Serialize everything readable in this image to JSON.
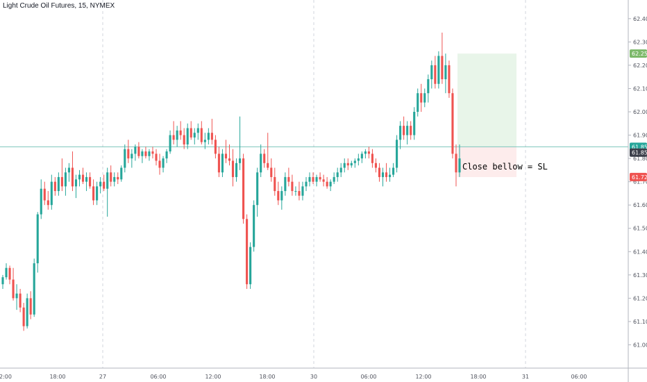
{
  "header": {
    "title": "Light Crude Oil Futures, 15, NYMEX"
  },
  "colors": {
    "up": "#26a69a",
    "down": "#ef5350",
    "grid": "#d1d4dc",
    "hline": "#7cc4bb",
    "target_zone": "#e8f5e9",
    "stop_zone": "#fdecec",
    "badge_green": "#7cb96a",
    "badge_red": "#ef5350",
    "badge_dark": "#3b3f4a"
  },
  "chart_data": {
    "type": "candlestick",
    "title": "Light Crude Oil Futures, 15, NYMEX",
    "ylim": [
      60.9,
      62.48
    ],
    "y_ticks": [
      "62.40",
      "62.30",
      "62.20",
      "62.10",
      "62.00",
      "61.90",
      "61.80",
      "61.70",
      "61.60",
      "61.50",
      "61.40",
      "61.30",
      "61.20",
      "61.10",
      "61.00"
    ],
    "x_ticks": [
      "2:00",
      "18:00",
      "27",
      "06:00",
      "12:00",
      "18:00",
      "30",
      "06:00",
      "12:00",
      "18:00",
      "31",
      "06:00"
    ],
    "price_badges": [
      {
        "label": "62.25",
        "value": 62.25,
        "color": "green"
      },
      {
        "label": "61.85",
        "value": 61.85,
        "color": "teal"
      },
      {
        "label": "61.85",
        "value": 61.825,
        "color": "dark"
      },
      {
        "label": "61.72",
        "value": 61.72,
        "color": "red"
      }
    ],
    "horizontal_line": 61.85,
    "position": {
      "target": 62.25,
      "entry": 61.85,
      "stop": 61.72
    },
    "annotation": "Close bellow = SL",
    "candles": [
      [
        61.26,
        61.3,
        61.24,
        61.29
      ],
      [
        61.29,
        61.35,
        61.28,
        61.33
      ],
      [
        61.33,
        61.34,
        61.26,
        61.28
      ],
      [
        61.28,
        61.33,
        61.19,
        61.2
      ],
      [
        61.2,
        61.26,
        61.15,
        61.22
      ],
      [
        61.22,
        61.24,
        61.14,
        61.16
      ],
      [
        61.16,
        61.18,
        61.06,
        61.08
      ],
      [
        61.08,
        61.22,
        61.07,
        61.2
      ],
      [
        61.2,
        61.23,
        61.11,
        61.13
      ],
      [
        61.13,
        61.37,
        61.12,
        61.35
      ],
      [
        61.35,
        61.57,
        61.31,
        61.56
      ],
      [
        61.56,
        61.71,
        61.54,
        61.67
      ],
      [
        61.67,
        61.7,
        61.6,
        61.62
      ],
      [
        61.62,
        61.66,
        61.58,
        61.6
      ],
      [
        61.6,
        61.73,
        61.58,
        61.7
      ],
      [
        61.7,
        61.72,
        61.64,
        61.66
      ],
      [
        61.66,
        61.74,
        61.64,
        61.72
      ],
      [
        61.72,
        61.8,
        61.66,
        61.68
      ],
      [
        61.68,
        61.76,
        61.64,
        61.74
      ],
      [
        61.74,
        61.78,
        61.7,
        61.76
      ],
      [
        61.76,
        61.83,
        61.66,
        61.68
      ],
      [
        61.68,
        61.73,
        61.63,
        61.71
      ],
      [
        61.71,
        61.75,
        61.68,
        61.73
      ],
      [
        61.73,
        61.76,
        61.69,
        61.7
      ],
      [
        61.7,
        61.74,
        61.66,
        61.72
      ],
      [
        61.72,
        61.74,
        61.67,
        61.68
      ],
      [
        61.68,
        61.71,
        61.6,
        61.62
      ],
      [
        61.62,
        61.7,
        61.6,
        61.68
      ],
      [
        61.68,
        61.72,
        61.65,
        61.7
      ],
      [
        61.7,
        61.73,
        61.66,
        61.67
      ],
      [
        61.67,
        61.76,
        61.55,
        61.74
      ],
      [
        61.74,
        61.77,
        61.68,
        61.7
      ],
      [
        61.7,
        61.74,
        61.68,
        61.72
      ],
      [
        61.72,
        61.74,
        61.69,
        61.71
      ],
      [
        61.71,
        61.77,
        61.7,
        61.76
      ],
      [
        61.76,
        61.86,
        61.74,
        61.84
      ],
      [
        61.84,
        61.88,
        61.78,
        61.8
      ],
      [
        61.8,
        61.84,
        61.76,
        61.82
      ],
      [
        61.82,
        61.86,
        61.79,
        61.85
      ],
      [
        61.85,
        61.87,
        61.8,
        61.81
      ],
      [
        61.81,
        61.84,
        61.78,
        61.83
      ],
      [
        61.83,
        61.85,
        61.8,
        61.81
      ],
      [
        61.81,
        61.84,
        61.79,
        61.83
      ],
      [
        61.83,
        61.85,
        61.8,
        61.82
      ],
      [
        61.82,
        61.84,
        61.77,
        61.79
      ],
      [
        61.79,
        61.82,
        61.73,
        61.76
      ],
      [
        61.76,
        61.81,
        61.74,
        61.8
      ],
      [
        61.8,
        61.84,
        61.78,
        61.83
      ],
      [
        61.83,
        61.92,
        61.82,
        61.9
      ],
      [
        61.9,
        61.96,
        61.86,
        61.88
      ],
      [
        61.88,
        61.94,
        61.85,
        61.92
      ],
      [
        61.92,
        61.96,
        61.88,
        61.9
      ],
      [
        61.9,
        61.93,
        61.84,
        61.86
      ],
      [
        61.86,
        61.95,
        61.84,
        61.93
      ],
      [
        61.93,
        61.96,
        61.88,
        61.89
      ],
      [
        61.89,
        61.93,
        61.86,
        61.91
      ],
      [
        61.91,
        61.95,
        61.88,
        61.93
      ],
      [
        61.93,
        61.96,
        61.86,
        61.87
      ],
      [
        61.87,
        61.91,
        61.84,
        61.88
      ],
      [
        61.88,
        61.93,
        61.86,
        61.91
      ],
      [
        61.91,
        61.97,
        61.86,
        61.88
      ],
      [
        61.88,
        61.9,
        61.8,
        61.82
      ],
      [
        61.82,
        61.85,
        61.72,
        61.74
      ],
      [
        61.74,
        61.84,
        61.72,
        61.82
      ],
      [
        61.82,
        61.88,
        61.78,
        61.8
      ],
      [
        61.8,
        61.86,
        61.77,
        61.79
      ],
      [
        61.79,
        61.84,
        61.68,
        61.72
      ],
      [
        61.72,
        61.8,
        61.7,
        61.78
      ],
      [
        61.78,
        61.98,
        61.75,
        61.8
      ],
      [
        61.8,
        61.82,
        61.52,
        61.54
      ],
      [
        61.54,
        61.56,
        61.24,
        61.26
      ],
      [
        61.26,
        61.44,
        61.24,
        61.42
      ],
      [
        61.42,
        61.62,
        61.4,
        61.6
      ],
      [
        61.6,
        61.76,
        61.55,
        61.74
      ],
      [
        61.74,
        61.86,
        61.72,
        61.82
      ],
      [
        61.82,
        61.84,
        61.76,
        61.78
      ],
      [
        61.78,
        61.91,
        61.75,
        61.76
      ],
      [
        61.76,
        61.8,
        61.7,
        61.72
      ],
      [
        61.72,
        61.76,
        61.64,
        61.66
      ],
      [
        61.66,
        61.7,
        61.6,
        61.62
      ],
      [
        61.62,
        61.68,
        61.58,
        61.66
      ],
      [
        61.66,
        61.74,
        61.64,
        61.72
      ],
      [
        61.72,
        61.76,
        61.68,
        61.7
      ],
      [
        61.7,
        61.73,
        61.64,
        61.66
      ],
      [
        61.66,
        61.68,
        61.64,
        61.66
      ],
      [
        61.66,
        61.7,
        61.62,
        61.64
      ],
      [
        61.64,
        61.7,
        61.62,
        61.68
      ],
      [
        61.68,
        61.72,
        61.66,
        61.7
      ],
      [
        61.7,
        61.74,
        61.68,
        61.72
      ],
      [
        61.72,
        61.74,
        61.69,
        61.7
      ],
      [
        61.7,
        61.73,
        61.68,
        61.72
      ],
      [
        61.72,
        61.74,
        61.7,
        61.71
      ],
      [
        61.71,
        61.73,
        61.68,
        61.7
      ],
      [
        61.7,
        61.72,
        61.67,
        61.68
      ],
      [
        61.68,
        61.71,
        61.66,
        61.7
      ],
      [
        61.7,
        61.74,
        61.69,
        61.72
      ],
      [
        61.72,
        61.76,
        61.7,
        61.74
      ],
      [
        61.74,
        61.78,
        61.72,
        61.76
      ],
      [
        61.76,
        61.8,
        61.74,
        61.78
      ],
      [
        61.78,
        61.8,
        61.75,
        61.77
      ],
      [
        61.77,
        61.79,
        61.76,
        61.78
      ],
      [
        61.78,
        61.8,
        61.76,
        61.79
      ],
      [
        61.79,
        61.82,
        61.77,
        61.8
      ],
      [
        61.8,
        61.83,
        61.78,
        61.82
      ],
      [
        61.82,
        61.84,
        61.8,
        61.83
      ],
      [
        61.83,
        61.85,
        61.8,
        61.82
      ],
      [
        61.82,
        61.84,
        61.76,
        61.78
      ],
      [
        61.78,
        61.8,
        61.74,
        61.76
      ],
      [
        61.76,
        61.78,
        61.7,
        61.72
      ],
      [
        61.72,
        61.76,
        61.68,
        61.74
      ],
      [
        61.74,
        61.78,
        61.7,
        61.72
      ],
      [
        61.72,
        61.76,
        61.7,
        61.73
      ],
      [
        61.73,
        61.78,
        61.72,
        61.76
      ],
      [
        61.76,
        61.9,
        61.74,
        61.88
      ],
      [
        61.88,
        61.96,
        61.84,
        61.94
      ],
      [
        61.94,
        61.98,
        61.88,
        61.9
      ],
      [
        61.9,
        61.96,
        61.86,
        61.94
      ],
      [
        61.94,
        61.96,
        61.88,
        61.9
      ],
      [
        61.9,
        62.02,
        61.88,
        62.0
      ],
      [
        62.0,
        62.1,
        61.98,
        62.08
      ],
      [
        62.08,
        62.12,
        62.0,
        62.04
      ],
      [
        62.04,
        62.1,
        62.02,
        62.08
      ],
      [
        62.08,
        62.16,
        62.04,
        62.14
      ],
      [
        62.14,
        62.22,
        62.1,
        62.2
      ],
      [
        62.2,
        62.24,
        62.1,
        62.12
      ],
      [
        62.12,
        62.26,
        62.1,
        62.24
      ],
      [
        62.24,
        62.34,
        62.12,
        62.14
      ],
      [
        62.14,
        62.25,
        62.08,
        62.2
      ],
      [
        62.2,
        62.22,
        62.06,
        62.08
      ],
      [
        62.08,
        62.1,
        61.8,
        61.82
      ],
      [
        61.82,
        61.86,
        61.68,
        61.74
      ],
      [
        61.74,
        61.86,
        61.72,
        61.8
      ]
    ]
  }
}
